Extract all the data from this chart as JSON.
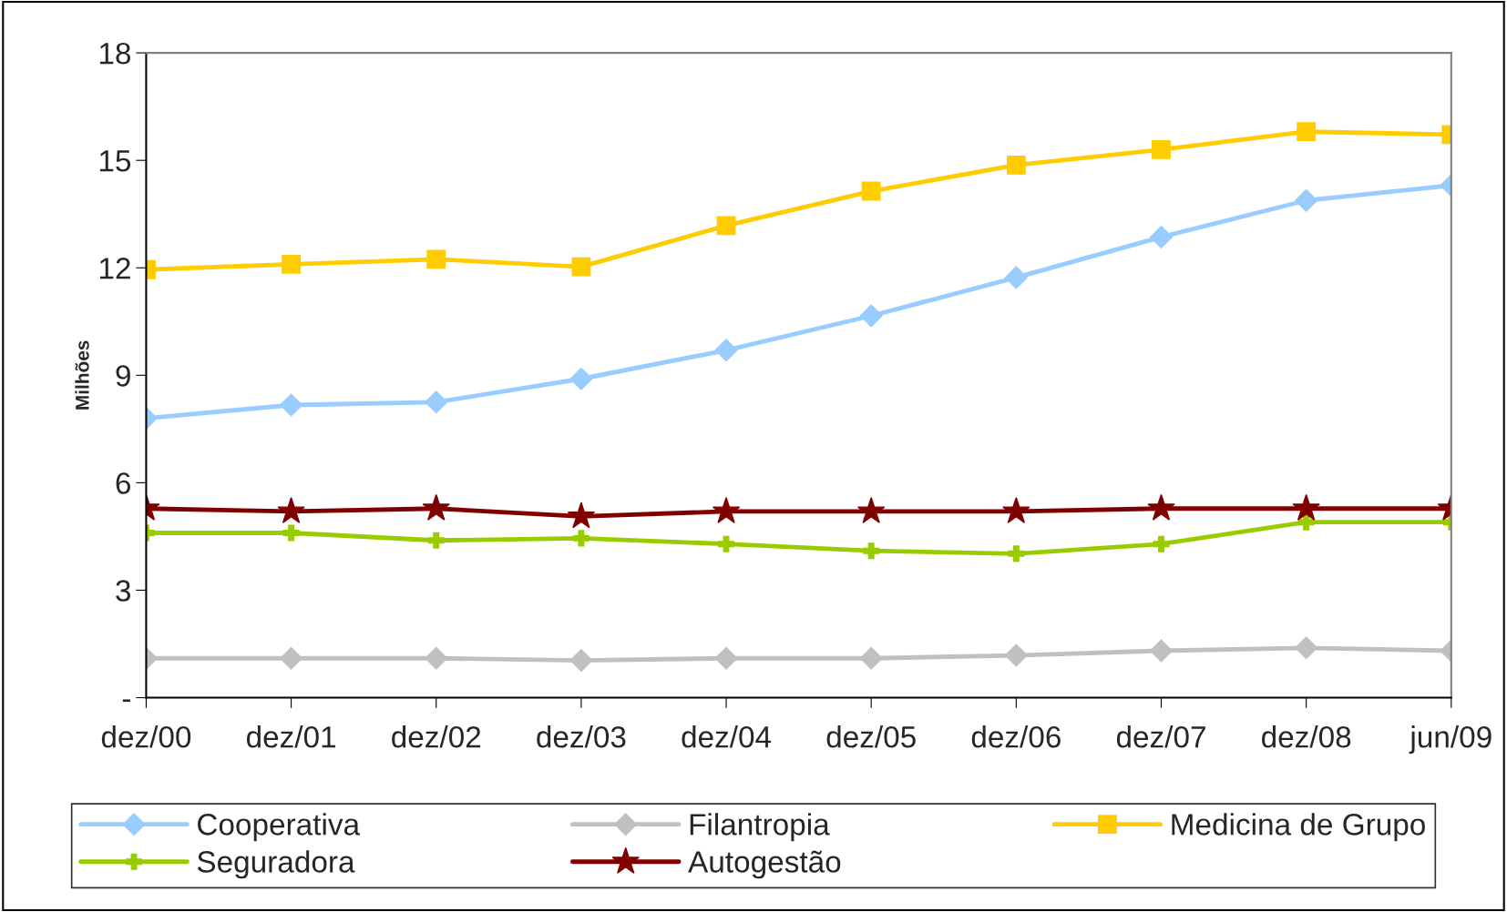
{
  "chart_data": {
    "type": "line",
    "ylabel": "Milhões",
    "categories": [
      "dez/00",
      "dez/01",
      "dez/02",
      "dez/03",
      "dez/04",
      "dez/05",
      "dez/06",
      "dez/07",
      "dez/08",
      "jun/09"
    ],
    "series": [
      {
        "name": "Cooperativa",
        "color": "#99ccff",
        "marker": "diamond",
        "values": [
          7.8,
          8.17,
          8.25,
          8.9,
          9.7,
          10.66,
          11.73,
          12.86,
          13.88,
          14.3
        ]
      },
      {
        "name": "Filantropia",
        "color": "#c0c0c0",
        "marker": "diamond",
        "values": [
          1.1,
          1.1,
          1.1,
          1.04,
          1.1,
          1.1,
          1.18,
          1.31,
          1.39,
          1.31
        ]
      },
      {
        "name": "Medicina de Grupo",
        "color": "#ffcc00",
        "marker": "square",
        "values": [
          11.95,
          12.1,
          12.24,
          12.03,
          13.18,
          14.14,
          14.87,
          15.3,
          15.8,
          15.72
        ]
      },
      {
        "name": "Seguradora",
        "color": "#99cc00",
        "marker": "cross",
        "values": [
          4.6,
          4.6,
          4.39,
          4.45,
          4.29,
          4.1,
          4.02,
          4.29,
          4.9,
          4.9
        ]
      },
      {
        "name": "Autogestão",
        "color": "#800000",
        "marker": "star",
        "values": [
          5.28,
          5.2,
          5.28,
          5.06,
          5.2,
          5.2,
          5.2,
          5.28,
          5.28,
          5.28
        ]
      }
    ],
    "ylim": [
      0,
      18
    ],
    "yticks": [
      {
        "value": 0,
        "label": "-"
      },
      3,
      6,
      9,
      12,
      15,
      18
    ],
    "grid": false,
    "legend": "bottom"
  }
}
